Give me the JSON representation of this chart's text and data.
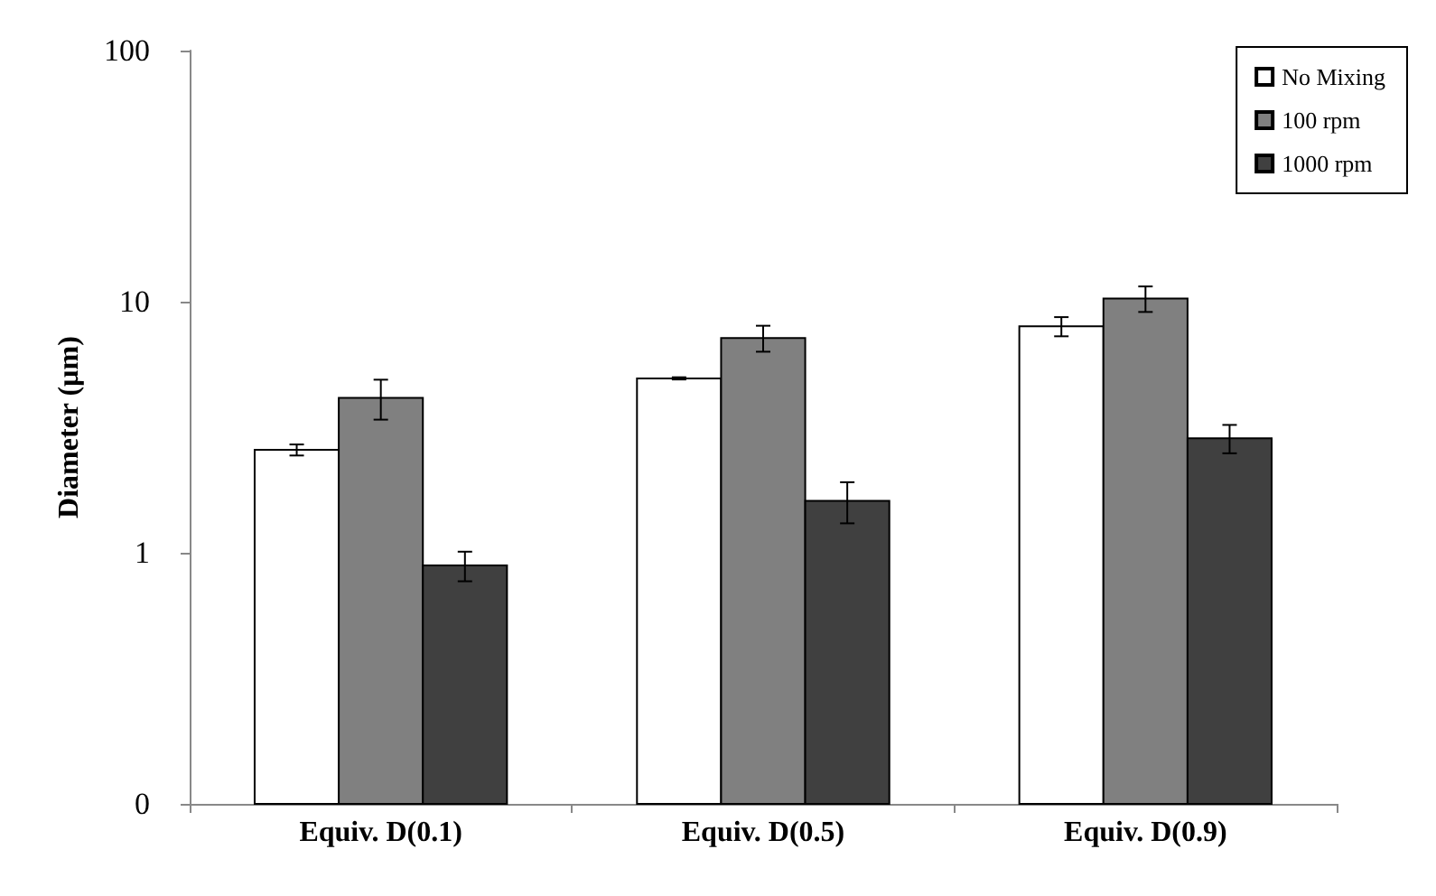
{
  "chart_data": {
    "type": "bar",
    "ylabel": "Diameter (µm)",
    "categories": [
      "Equiv. D(0.1)",
      "Equiv. D(0.5)",
      "Equiv. D(0.9)"
    ],
    "series": [
      {
        "name": "No Mixing",
        "color": "#ffffff",
        "values": [
          2.57,
          4.95,
          7.98
        ],
        "errors": [
          0.13,
          0.05,
          0.7
        ]
      },
      {
        "name": "100 rpm",
        "color": "#808080",
        "values": [
          4.14,
          7.17,
          10.3
        ],
        "errors": [
          0.75,
          0.85,
          1.2
        ]
      },
      {
        "name": "1000 rpm",
        "color": "#404040",
        "values": [
          0.89,
          1.61,
          2.86
        ],
        "errors": [
          0.12,
          0.3,
          0.37
        ]
      }
    ],
    "log": "y",
    "ylim": [
      0.1,
      100
    ],
    "yticks": [
      {
        "value": 0.1,
        "label": "0"
      },
      1,
      10,
      100
    ],
    "grid": false,
    "legend": "top right"
  }
}
